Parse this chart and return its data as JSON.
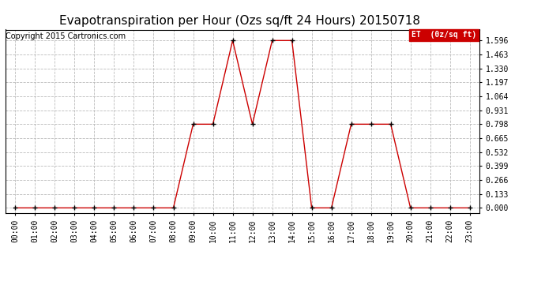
{
  "title": "Evapotranspiration per Hour (Ozs sq/ft 24 Hours) 20150718",
  "copyright": "Copyright 2015 Cartronics.com",
  "legend_label": "ET  (0z/sq ft)",
  "hours": [
    "00:00",
    "01:00",
    "02:00",
    "03:00",
    "04:00",
    "05:00",
    "06:00",
    "07:00",
    "08:00",
    "09:00",
    "10:00",
    "11:00",
    "12:00",
    "13:00",
    "14:00",
    "15:00",
    "16:00",
    "17:00",
    "18:00",
    "19:00",
    "20:00",
    "21:00",
    "22:00",
    "23:00"
  ],
  "values": [
    0.0,
    0.0,
    0.0,
    0.0,
    0.0,
    0.0,
    0.0,
    0.0,
    0.0,
    0.798,
    0.798,
    1.596,
    0.798,
    1.596,
    1.596,
    0.0,
    0.0,
    0.798,
    0.798,
    0.798,
    0.0,
    0.0,
    0.0,
    0.0
  ],
  "ylim": [
    -0.05,
    1.7
  ],
  "yticks": [
    0.0,
    0.133,
    0.266,
    0.399,
    0.532,
    0.665,
    0.798,
    0.931,
    1.064,
    1.197,
    1.33,
    1.463,
    1.596
  ],
  "line_color": "#cc0000",
  "marker_color": "#000000",
  "bg_color": "#ffffff",
  "grid_color": "#bbbbbb",
  "legend_bg": "#cc0000",
  "legend_text_color": "#ffffff",
  "title_fontsize": 11,
  "copyright_fontsize": 7,
  "tick_fontsize": 7,
  "border_color": "#000000"
}
